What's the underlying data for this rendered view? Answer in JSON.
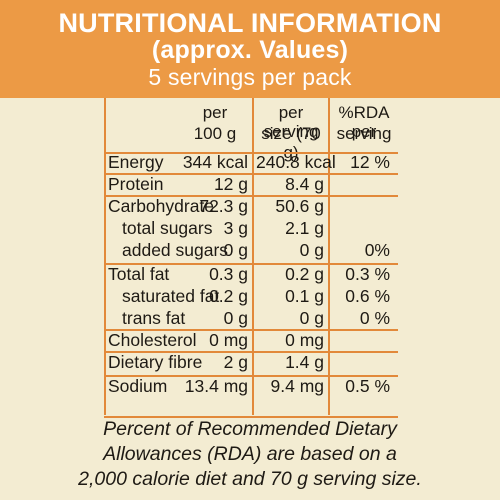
{
  "header": {
    "title": "NUTRITIONAL INFORMATION",
    "subtitle": "(approx. Values)",
    "servings": "5 servings per pack"
  },
  "columns": {
    "per_100g_line1": "per",
    "per_100g_line2": "100 g",
    "per_serving_line1": "per serving",
    "per_serving_line2": "size (70 g)",
    "rda_line1": "%RDA per",
    "rda_line2": "serving"
  },
  "rows": [
    {
      "label": "Energy",
      "per100": "344 kcal",
      "serving": "240.8 kcal",
      "rda": "12 %"
    },
    {
      "label": "Protein",
      "per100": "12 g",
      "serving": "8.4 g",
      "rda": ""
    },
    {
      "label": "Carbohydrate",
      "per100": "72.3 g",
      "serving": "50.6 g",
      "rda": ""
    },
    {
      "label": "total sugars",
      "per100": "3 g",
      "serving": "2.1 g",
      "rda": ""
    },
    {
      "label": "added sugars",
      "per100": "0 g",
      "serving": "0 g",
      "rda": "0%"
    },
    {
      "label": "Total fat",
      "per100": "0.3 g",
      "serving": "0.2 g",
      "rda": "0.3 %"
    },
    {
      "label": "saturated fat",
      "per100": "0.2 g",
      "serving": "0.1 g",
      "rda": "0.6 %"
    },
    {
      "label": "trans fat",
      "per100": "0 g",
      "serving": "0 g",
      "rda": "0 %"
    },
    {
      "label": "Cholesterol",
      "per100": "0 mg",
      "serving": "0 mg",
      "rda": ""
    },
    {
      "label": "Dietary fibre",
      "per100": "2 g",
      "serving": "1.4 g",
      "rda": ""
    },
    {
      "label": "Sodium",
      "per100": "13.4 mg",
      "serving": "9.4 mg",
      "rda": "0.5 %"
    }
  ],
  "footer": {
    "line1": "Percent of Recommended Dietary",
    "line2": "Allowances (RDA) are based on a",
    "line3": "2,000 calorie diet and 70 g serving size."
  }
}
